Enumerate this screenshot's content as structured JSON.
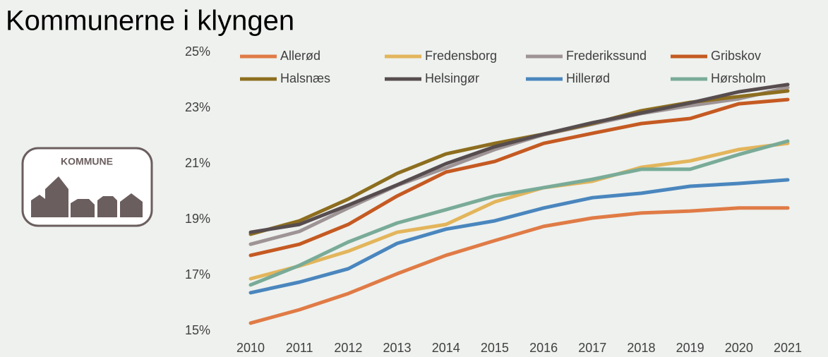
{
  "logo_text": "KOMMUNE",
  "chart_data": {
    "type": "line",
    "title": "Kommunerne i klyngen",
    "categories": [
      "2010",
      "2011",
      "2012",
      "2013",
      "2014",
      "2015",
      "2016",
      "2017",
      "2018",
      "2019",
      "2020",
      "2021"
    ],
    "series": [
      {
        "name": "Allerød",
        "color": "#e07b46",
        "values": [
          15.28,
          15.76,
          16.34,
          17.05,
          17.71,
          18.24,
          18.75,
          19.05,
          19.23,
          19.3,
          19.41,
          19.41
        ]
      },
      {
        "name": "Fredensborg",
        "color": "#e3b55b",
        "values": [
          16.87,
          17.33,
          17.86,
          18.54,
          18.82,
          19.63,
          20.14,
          20.37,
          20.87,
          21.1,
          21.51,
          21.73
        ]
      },
      {
        "name": "Frederikssund",
        "color": "#9e9496",
        "values": [
          18.11,
          18.57,
          19.41,
          20.22,
          20.85,
          21.51,
          22.04,
          22.42,
          22.8,
          23.08,
          23.33,
          23.73
        ]
      },
      {
        "name": "Gribskov",
        "color": "#c55a22",
        "values": [
          17.71,
          18.11,
          18.82,
          19.84,
          20.7,
          21.08,
          21.73,
          22.09,
          22.44,
          22.62,
          23.15,
          23.3
        ]
      },
      {
        "name": "Halsnæs",
        "color": "#8d6e1f",
        "values": [
          18.47,
          18.95,
          19.73,
          20.65,
          21.35,
          21.73,
          22.06,
          22.44,
          22.9,
          23.2,
          23.41,
          23.61
        ]
      },
      {
        "name": "Helsingør",
        "color": "#574d4f",
        "values": [
          18.54,
          18.82,
          19.51,
          20.24,
          21.0,
          21.61,
          22.06,
          22.47,
          22.82,
          23.18,
          23.58,
          23.84
        ]
      },
      {
        "name": "Hillerød",
        "color": "#4a86be",
        "values": [
          16.37,
          16.75,
          17.23,
          18.14,
          18.65,
          18.95,
          19.41,
          19.78,
          19.94,
          20.19,
          20.29,
          20.42
        ]
      },
      {
        "name": "Hørsholm",
        "color": "#79ab98",
        "values": [
          16.65,
          17.35,
          18.19,
          18.87,
          19.35,
          19.84,
          20.14,
          20.44,
          20.8,
          20.8,
          21.33,
          21.81
        ]
      }
    ],
    "ylim": [
      15,
      25
    ],
    "yticks": [
      {
        "value": 15,
        "label": "15%"
      },
      {
        "value": 17,
        "label": "17%"
      },
      {
        "value": 19,
        "label": "19%"
      },
      {
        "value": 21,
        "label": "21%"
      },
      {
        "value": 23,
        "label": "23%"
      },
      {
        "value": 25,
        "label": "25%"
      }
    ],
    "grid": false,
    "legend": "top"
  }
}
